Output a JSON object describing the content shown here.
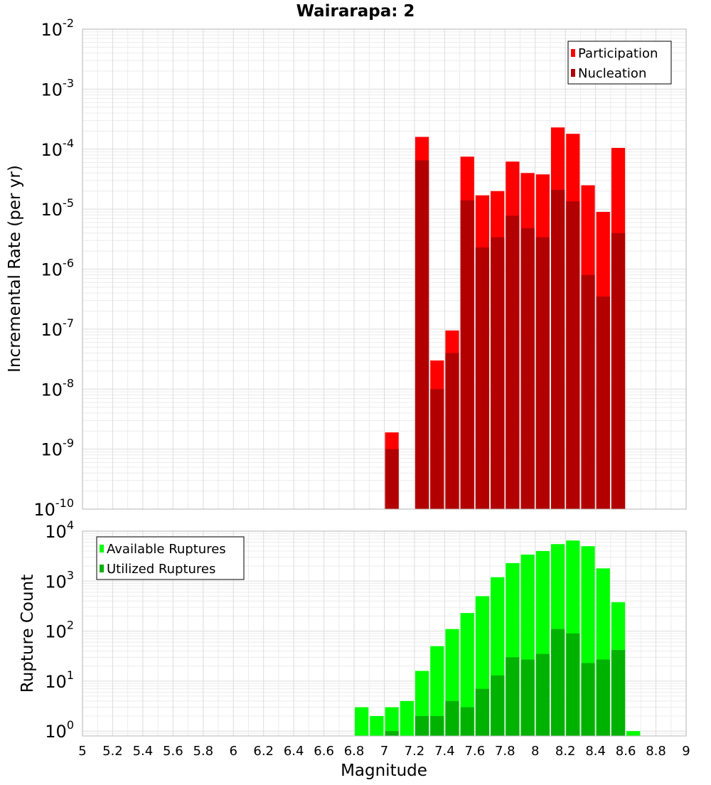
{
  "chart_data": [
    {
      "type": "bar",
      "title": "Wairarapa: 2",
      "xlabel": "",
      "ylabel": "Incremental Rate (per yr)",
      "yscale": "log",
      "ylim": [
        1e-10,
        0.01
      ],
      "xlim": [
        5,
        9
      ],
      "bin_width": 0.1,
      "ytick_exponents": [
        "-10",
        "-9",
        "-8",
        "-7",
        "-6",
        "-5",
        "-4",
        "-3",
        "-2"
      ],
      "ytick_base": "10",
      "grid": true,
      "legend_position": "top-right",
      "colors": {
        "Participation": "#ff0000",
        "Nucleation": "#b20000"
      },
      "series": [
        {
          "name": "Participation",
          "x": [
            7.05,
            7.25,
            7.35,
            7.45,
            7.55,
            7.65,
            7.75,
            7.85,
            7.95,
            8.05,
            8.15,
            8.25,
            8.35,
            8.45,
            8.55
          ],
          "values": [
            1.9e-09,
            0.00016,
            3e-08,
            9.5e-08,
            7.5e-05,
            1.7e-05,
            2e-05,
            6.2e-05,
            4e-05,
            3.8e-05,
            0.00023,
            0.00018,
            2.5e-05,
            9e-06,
            0.000105
          ]
        },
        {
          "name": "Nucleation",
          "x": [
            7.05,
            7.25,
            7.35,
            7.45,
            7.55,
            7.65,
            7.75,
            7.85,
            7.95,
            8.05,
            8.15,
            8.25,
            8.35,
            8.45,
            8.55
          ],
          "values": [
            1e-09,
            6.5e-05,
            1e-08,
            4e-08,
            1.4e-05,
            2.3e-06,
            3.4e-06,
            7.8e-06,
            4.8e-06,
            3.4e-06,
            2.1e-05,
            1.35e-05,
            8e-07,
            3.5e-07,
            4e-06
          ]
        }
      ]
    },
    {
      "type": "bar",
      "xlabel": "Magnitude",
      "ylabel": "Rupture Count",
      "yscale": "log",
      "ylim": [
        0.8,
        10000
      ],
      "xlim": [
        5,
        9
      ],
      "bin_width": 0.1,
      "ytick_exponents": [
        "0",
        "1",
        "2",
        "3",
        "4"
      ],
      "ytick_base": "10",
      "xticks": [
        "5",
        "5.2",
        "5.4",
        "5.6",
        "5.8",
        "6",
        "6.2",
        "6.4",
        "6.6",
        "6.8",
        "7",
        "7.2",
        "7.4",
        "7.6",
        "7.8",
        "8",
        "8.2",
        "8.4",
        "8.6",
        "8.8",
        "9"
      ],
      "grid": true,
      "legend_position": "top-left",
      "colors": {
        "Available Ruptures": "#00ff00",
        "Utilized Ruptures": "#00b200"
      },
      "series": [
        {
          "name": "Available Ruptures",
          "x": [
            6.85,
            6.95,
            7.05,
            7.15,
            7.25,
            7.35,
            7.45,
            7.55,
            7.65,
            7.75,
            7.85,
            7.95,
            8.05,
            8.15,
            8.25,
            8.35,
            8.45,
            8.55,
            8.65
          ],
          "values": [
            3,
            2,
            3,
            4,
            16,
            50,
            110,
            230,
            500,
            1200,
            2300,
            3400,
            4000,
            5500,
            6500,
            5000,
            1800,
            380,
            1
          ]
        },
        {
          "name": "Utilized Ruptures",
          "x": [
            7.05,
            7.25,
            7.35,
            7.45,
            7.55,
            7.65,
            7.75,
            7.85,
            7.95,
            8.05,
            8.15,
            8.25,
            8.35,
            8.45,
            8.55
          ],
          "values": [
            1,
            2,
            2,
            4,
            3,
            7,
            13,
            30,
            27,
            35,
            110,
            90,
            23,
            27,
            42
          ]
        }
      ]
    }
  ]
}
